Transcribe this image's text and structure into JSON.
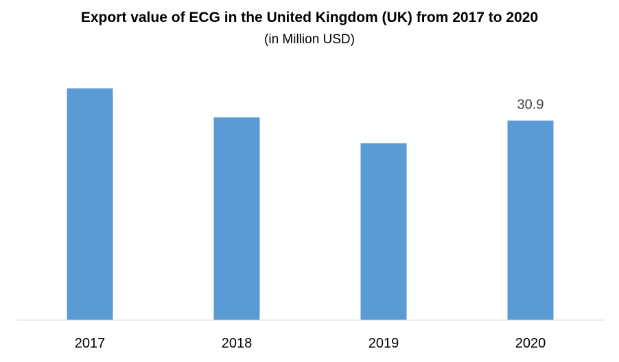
{
  "chart_data": {
    "type": "bar",
    "title": "Export value of ECG in the United Kingdom (UK) from 2017 to 2020",
    "subtitle": "(in Million USD)",
    "categories": [
      "2017",
      "2018",
      "2019",
      "2020"
    ],
    "values": [
      35.9,
      31.4,
      27.4,
      30.9
    ],
    "data_labels": [
      "",
      "",
      "",
      "30.9"
    ],
    "xlabel": "",
    "ylabel": "",
    "ylim": [
      0,
      40
    ],
    "grid": false,
    "legend": "none",
    "bar_color": "#5b9bd5"
  }
}
